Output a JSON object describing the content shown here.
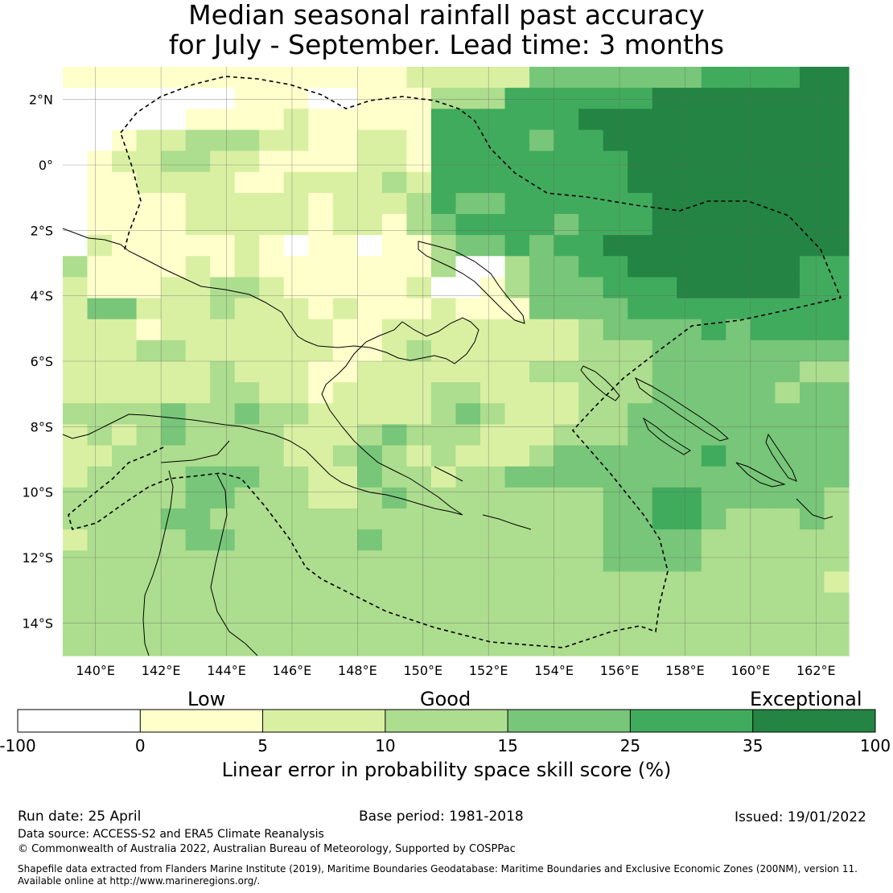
{
  "title": {
    "line1": "Median seasonal rainfall past accuracy",
    "line2": "for July - September. Lead time: 3 months"
  },
  "axes": {
    "lat_labels": [
      "2°N",
      "0°",
      "2°S",
      "4°S",
      "6°S",
      "8°S",
      "10°S",
      "12°S",
      "14°S"
    ],
    "lon_labels": [
      "140°E",
      "142°E",
      "144°E",
      "146°E",
      "148°E",
      "150°E",
      "152°E",
      "154°E",
      "156°E",
      "158°E",
      "160°E",
      "162°E"
    ],
    "lat_values": [
      2,
      0,
      -2,
      -4,
      -6,
      -8,
      -10,
      -12,
      -14
    ],
    "lon_values": [
      140,
      142,
      144,
      146,
      148,
      150,
      152,
      154,
      156,
      158,
      160,
      162
    ],
    "lon_range": [
      139,
      163
    ],
    "lat_range": [
      -15,
      3
    ]
  },
  "colorbar": {
    "words": {
      "low": "Low",
      "good": "Good",
      "exceptional": "Exceptional"
    },
    "tick_labels": [
      "-100",
      "0",
      "5",
      "10",
      "15",
      "25",
      "35",
      "100"
    ],
    "colors": [
      "#ffffff",
      "#ffffcc",
      "#d9f0a3",
      "#addd8e",
      "#78c679",
      "#41ab5d",
      "#238443"
    ],
    "label": "Linear error in probability space skill score (%)"
  },
  "footer": {
    "run_date": "Run date: 25 April",
    "base_period": "Base period: 1981-2018",
    "issued": "Issued: 19/01/2022",
    "data_source": "Data source: ACCESS-S2 and ERA5 Climate Reanalysis",
    "copyright": "© Commonwealth of Australia 2022, Australian Bureau of Meteorology, Supported by COSPPac",
    "shapefile_line1": "Shapefile data extracted from Flanders Marine Institute (2019), Maritime Boundaries Geodatabase: Maritime Boundaries and Exclusive Economic Zones (200NM), version 11.",
    "shapefile_line2": "Available online at http://www.marineregions.org/."
  },
  "map": {
    "grid_rows_note": "rows north to south, columns west to east, class index 0=<0,1=0-5,2=5-10,3=10-15,4=15-25,5=25-35,6=35-100",
    "grid": [
      "11111111111111222224444444555566",
      "00000001110011133355555566666666",
      "00000111121111155555566666666666",
      "00122333221122155554556666666666",
      "01223322111122155555555666666666",
      "01122221122223255555555666666666",
      "01111222221222354455555566666666",
      "01111222221221345555455566666666",
      "02111112101101134454556666666666",
      "31111212111111130034455666666655",
      "21112233211111200134445556666655",
      "24422232221211121114444555555555",
      "22212222222112222222234444545555",
      "22233222222112322222233344444444",
      "22222232221122222223333344444433",
      "22222233221222233222233344444344",
      "33334334332222234322233444444444",
      "23234333322234333222333444444444",
      "22333333322343232223444444544444",
      "23333444332243323344444444444444",
      "33333443332234333333334455444443",
      "33334433333333333333334455433343",
      "23333443333343333333334444333333",
      "33333333333333333333334444333333",
      "33333333333333333333333333333332",
      "33333333333333333333333333333333",
      "33333333333333333333333333333333",
      "33333333333333333333333333333333"
    ]
  }
}
